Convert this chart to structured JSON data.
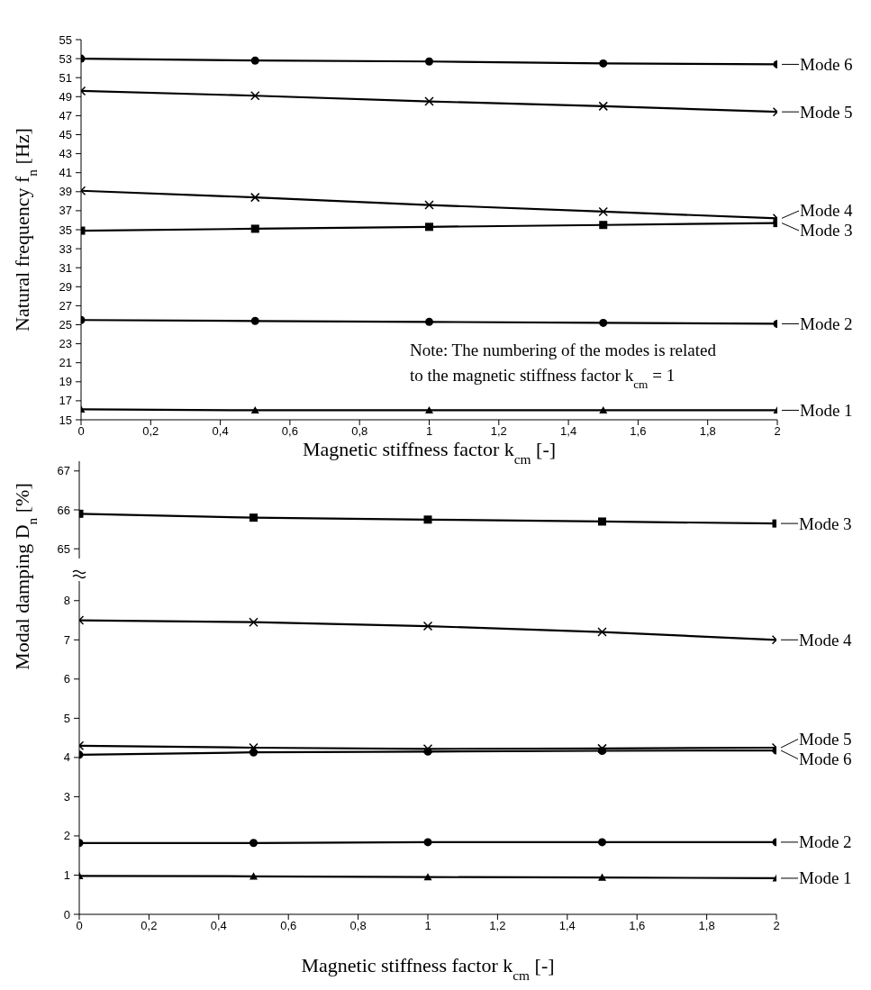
{
  "chart_data": [
    {
      "type": "line",
      "legend": "right",
      "xlabel": "Magnetic stiffness factor k$_{cm}$ [-]",
      "ylabel": "Natural frequency f$_{n}$ [Hz]",
      "annotations": [
        "Note: The numbering of the modes is related\nto the magnetic stiffness factor k$_{cm}$ = 1"
      ],
      "line_style": "solid",
      "x": [
        0,
        0.5,
        1,
        1.5,
        2
      ],
      "xlim": [
        0,
        2
      ],
      "xticks": [
        0,
        {
          "value": 0.2,
          "label": "0,2"
        },
        {
          "value": 0.4,
          "label": "0,4"
        },
        {
          "value": 0.6,
          "label": "0,6"
        },
        {
          "value": 0.8,
          "label": "0,8"
        },
        1,
        {
          "value": 1.2,
          "label": "1,2"
        },
        {
          "value": 1.4,
          "label": "1,4"
        },
        {
          "value": 1.6,
          "label": "1,6"
        },
        {
          "value": 1.8,
          "label": "1,8"
        },
        2
      ],
      "ylim": [
        15,
        55
      ],
      "yticks": [
        15,
        17,
        19,
        21,
        23,
        25,
        27,
        29,
        31,
        33,
        35,
        37,
        39,
        41,
        43,
        45,
        47,
        49,
        51,
        53,
        55
      ],
      "series": [
        {
          "name": "Mode 1",
          "color": "#000000",
          "marker": "triangle",
          "values": [
            16.1,
            16.0,
            16.0,
            16.0,
            16.0
          ]
        },
        {
          "name": "Mode 2",
          "color": "#000000",
          "marker": "circle",
          "values": [
            25.5,
            25.4,
            25.3,
            25.2,
            25.1
          ]
        },
        {
          "name": "Mode 3",
          "color": "#000000",
          "marker": "square",
          "values": [
            34.9,
            35.1,
            35.3,
            35.5,
            35.7
          ]
        },
        {
          "name": "Mode 4",
          "color": "#000000",
          "marker": "cross",
          "values": [
            39.1,
            38.4,
            37.6,
            36.9,
            36.2
          ]
        },
        {
          "name": "Mode 5",
          "color": "#000000",
          "marker": "cross",
          "values": [
            49.6,
            49.1,
            48.5,
            48.0,
            47.4
          ]
        },
        {
          "name": "Mode 6",
          "color": "#000000",
          "marker": "circle",
          "values": [
            53.0,
            52.8,
            52.7,
            52.5,
            52.4
          ]
        }
      ]
    },
    {
      "type": "line",
      "legend": "right",
      "tick_labels": "y",
      "line_style": "solid",
      "x": [
        0,
        0.5,
        1,
        1.5,
        2
      ],
      "xlim": [
        0,
        2
      ],
      "ylim": [
        64.75,
        67.25
      ],
      "yticks": [
        65,
        66,
        67
      ],
      "series": [
        {
          "name": "Mode 3",
          "color": "#000000",
          "marker": "square",
          "values": [
            65.9,
            65.8,
            65.75,
            65.7,
            65.65
          ]
        }
      ]
    },
    {
      "type": "line",
      "legend": "right",
      "xlabel": "Magnetic stiffness factor k$_{cm}$ [-]",
      "ylabel": "Modal damping D$_{n}$ [%]",
      "line_style": "solid",
      "x": [
        0,
        0.5,
        1,
        1.5,
        2
      ],
      "xlim": [
        0,
        2
      ],
      "xticks": [
        0,
        {
          "value": 0.2,
          "label": "0,2"
        },
        {
          "value": 0.4,
          "label": "0,4"
        },
        {
          "value": 0.6,
          "label": "0,6"
        },
        {
          "value": 0.8,
          "label": "0,8"
        },
        1,
        {
          "value": 1.2,
          "label": "1,2"
        },
        {
          "value": 1.4,
          "label": "1,4"
        },
        {
          "value": 1.6,
          "label": "1,6"
        },
        {
          "value": 1.8,
          "label": "1,8"
        },
        2
      ],
      "ylim": [
        0,
        8.5
      ],
      "yticks": [
        0,
        1,
        2,
        3,
        4,
        5,
        6,
        7,
        8
      ],
      "series": [
        {
          "name": "Mode 1",
          "color": "#000000",
          "marker": "triangle",
          "values": [
            0.98,
            0.97,
            0.95,
            0.94,
            0.92
          ]
        },
        {
          "name": "Mode 2",
          "color": "#000000",
          "marker": "circle",
          "values": [
            1.82,
            1.82,
            1.84,
            1.84,
            1.84
          ]
        },
        {
          "name": "Mode 4",
          "color": "#000000",
          "marker": "cross",
          "values": [
            7.5,
            7.45,
            7.35,
            7.2,
            7.0
          ]
        },
        {
          "name": "Mode 5",
          "color": "#000000",
          "marker": "cross",
          "values": [
            4.3,
            4.25,
            4.22,
            4.23,
            4.25
          ]
        },
        {
          "name": "Mode 6",
          "color": "#000000",
          "marker": "circle",
          "values": [
            4.07,
            4.13,
            4.15,
            4.17,
            4.18
          ]
        }
      ]
    }
  ]
}
